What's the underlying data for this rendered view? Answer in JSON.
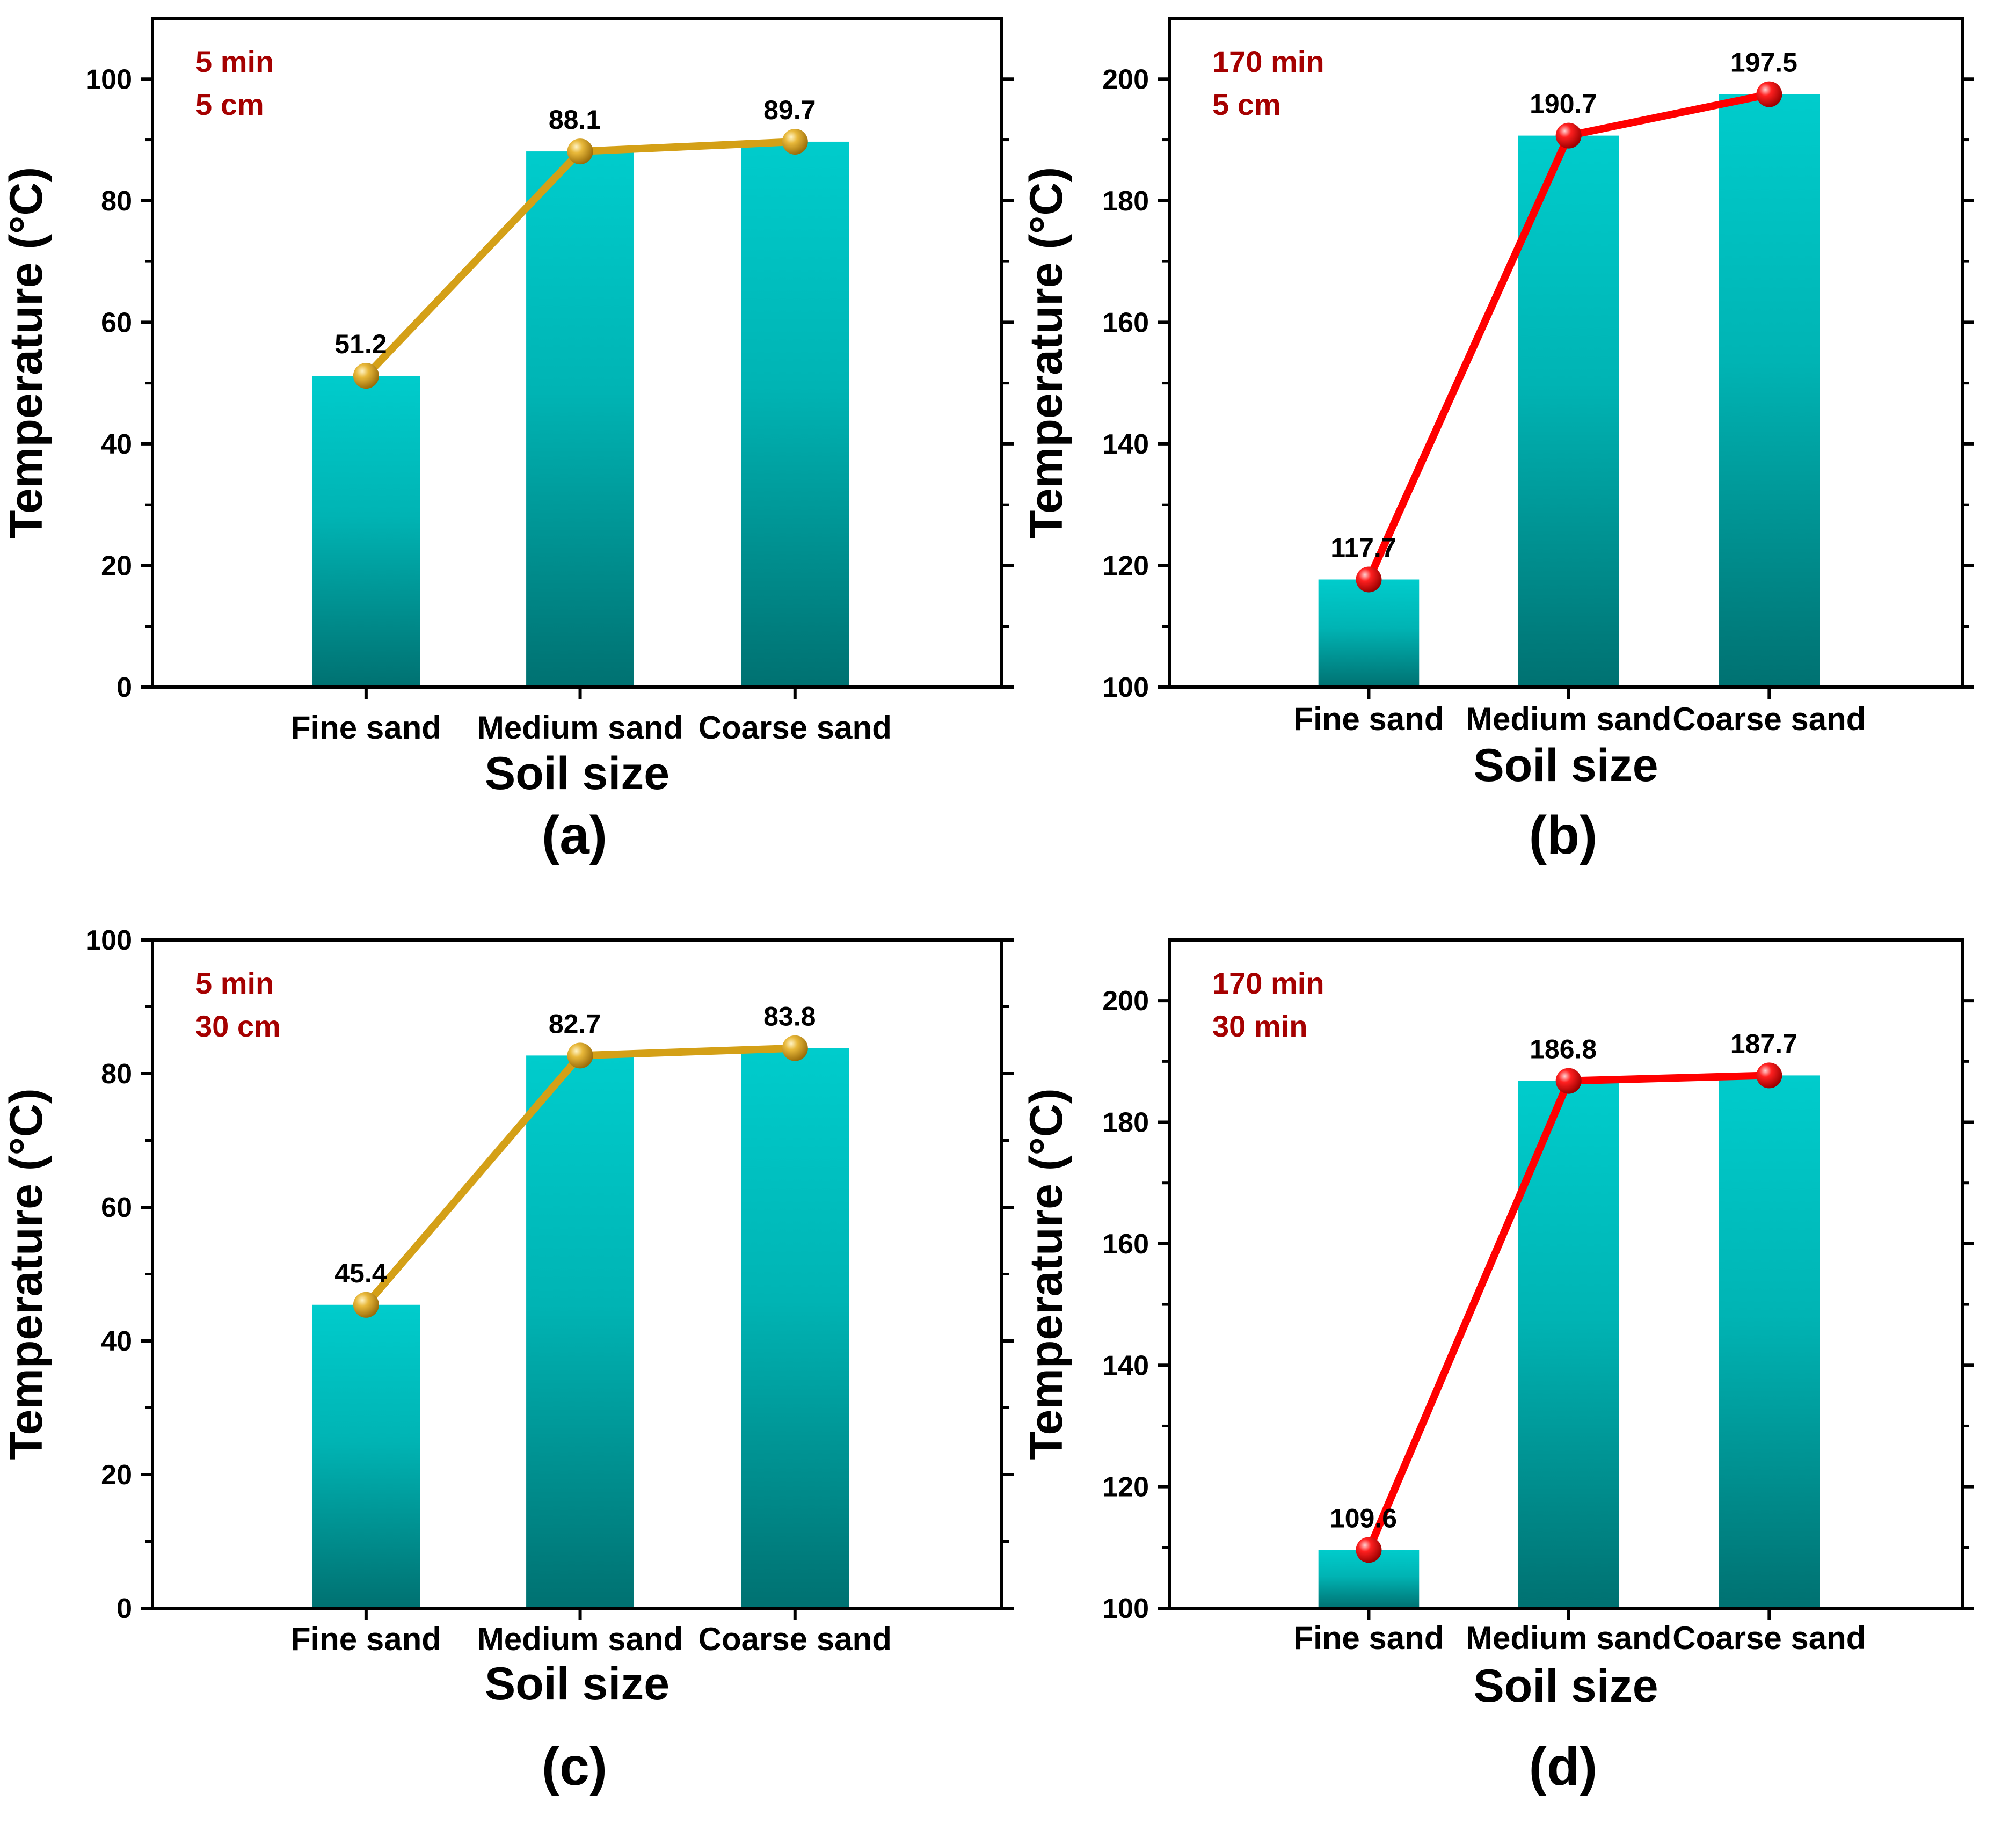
{
  "figure": {
    "colors": {
      "bar_top": "#00CCCC",
      "bar_bottom": "#007171",
      "gold_line": "#D4A017",
      "red_line": "#FF0000",
      "annotation": "#A50000",
      "axis": "#000000"
    }
  },
  "chart_data": [
    {
      "type": "bar",
      "panel_label": "(a)",
      "title": "",
      "xlabel": "Soil size",
      "ylabel": "Temperature (°C)",
      "categories": [
        "Fine sand",
        "Medium sand",
        "Coarse sand"
      ],
      "values": [
        51.2,
        88.1,
        89.7
      ],
      "data_labels": [
        "51.2",
        "88.1",
        "89.7"
      ],
      "ylim": [
        0,
        110
      ],
      "yticks": [
        0,
        20,
        40,
        60,
        80,
        100
      ],
      "ytick_labels": [
        "0",
        "20",
        "40",
        "60",
        "80",
        "100"
      ],
      "overlay_line": {
        "type": "line",
        "color": "#D4A017",
        "marker": "sphere",
        "values": [
          51.2,
          88.1,
          89.7
        ]
      },
      "annotation": [
        "5 min",
        "5 cm"
      ],
      "grid": false
    },
    {
      "type": "bar",
      "panel_label": "(b)",
      "title": "",
      "xlabel": "Soil size",
      "ylabel": "Temperature (°C)",
      "categories": [
        "Fine sand",
        "Medium sand",
        "Coarse sand"
      ],
      "values": [
        117.7,
        190.7,
        197.5
      ],
      "data_labels": [
        "117.7",
        "190.7",
        "197.5"
      ],
      "ylim": [
        100,
        210
      ],
      "yticks": [
        100,
        120,
        140,
        160,
        180,
        200
      ],
      "ytick_labels": [
        "100",
        "120",
        "140",
        "160",
        "180",
        "200"
      ],
      "overlay_line": {
        "type": "line",
        "color": "#FF0000",
        "marker": "sphere",
        "values": [
          117.7,
          190.7,
          197.5
        ]
      },
      "annotation": [
        "170 min",
        "5 cm"
      ],
      "grid": false
    },
    {
      "type": "bar",
      "panel_label": "(c)",
      "title": "",
      "xlabel": "Soil size",
      "ylabel": "Temperature (°C)",
      "categories": [
        "Fine sand",
        "Medium sand",
        "Coarse sand"
      ],
      "values": [
        45.4,
        82.7,
        83.8
      ],
      "data_labels": [
        "45.4",
        "82.7",
        "83.8"
      ],
      "ylim": [
        0,
        100
      ],
      "yticks": [
        0,
        20,
        40,
        60,
        80,
        100
      ],
      "ytick_labels": [
        "0",
        "20",
        "40",
        "60",
        "80",
        "100"
      ],
      "overlay_line": {
        "type": "line",
        "color": "#D4A017",
        "marker": "sphere",
        "values": [
          45.4,
          82.7,
          83.8
        ]
      },
      "annotation": [
        "5 min",
        "30 cm"
      ],
      "grid": false
    },
    {
      "type": "bar",
      "panel_label": "(d)",
      "title": "",
      "xlabel": "Soil size",
      "ylabel": "Temperature (°C)",
      "categories": [
        "Fine sand",
        "Medium sand",
        "Coarse sand"
      ],
      "values": [
        109.6,
        186.8,
        187.7
      ],
      "data_labels": [
        "109.6",
        "186.8",
        "187.7"
      ],
      "ylim": [
        100,
        210
      ],
      "yticks": [
        100,
        120,
        140,
        160,
        180,
        200
      ],
      "ytick_labels": [
        "100",
        "120",
        "140",
        "160",
        "180",
        "200"
      ],
      "overlay_line": {
        "type": "line",
        "color": "#FF0000",
        "marker": "sphere",
        "values": [
          109.6,
          186.8,
          187.7
        ]
      },
      "annotation": [
        "170 min",
        "30 min"
      ],
      "grid": false
    }
  ]
}
